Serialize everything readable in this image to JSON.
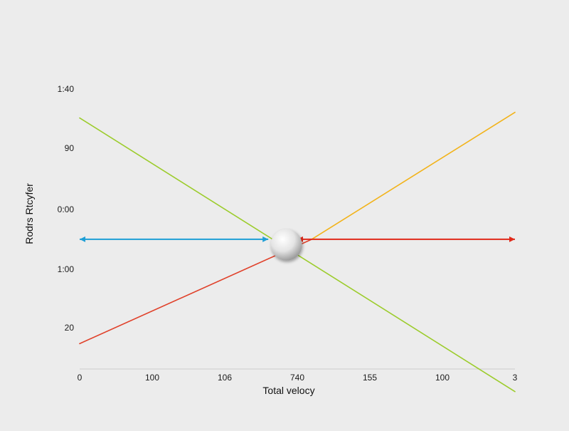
{
  "chart_data": {
    "type": "line",
    "title": "",
    "xlabel": "Total velocy",
    "ylabel": "Rodrs Rtcyfer",
    "x_tick_labels": [
      "0",
      "100",
      "106",
      "740",
      "155",
      "100",
      "3"
    ],
    "y_tick_labels": [
      "1:40",
      "90",
      "0:00",
      "1:00",
      "20"
    ],
    "xlim": [
      0,
      6
    ],
    "ylim": [
      0,
      5
    ],
    "grid": false,
    "legend": "none",
    "series": [
      {
        "color": "#9ccc2c",
        "x": [
          0,
          6
        ],
        "y": [
          4.45,
          -0.4
        ]
      },
      {
        "color": "#f2b31a",
        "x": [
          3.2,
          6
        ],
        "y": [
          2.3,
          4.55
        ]
      },
      {
        "color": "#e0412a",
        "x": [
          0,
          3.2
        ],
        "y": [
          0.45,
          2.3
        ]
      }
    ],
    "arrows": [
      {
        "color": "#1f9fd6",
        "x": [
          0,
          2.6
        ],
        "y": [
          2.3,
          2.3
        ],
        "heads": "both"
      },
      {
        "color": "#e02a1a",
        "x": [
          3.0,
          6
        ],
        "y": [
          2.3,
          2.3
        ],
        "heads": "both"
      }
    ],
    "marker": {
      "shape": "sphere",
      "x": 2.85,
      "y": 2.2
    }
  }
}
